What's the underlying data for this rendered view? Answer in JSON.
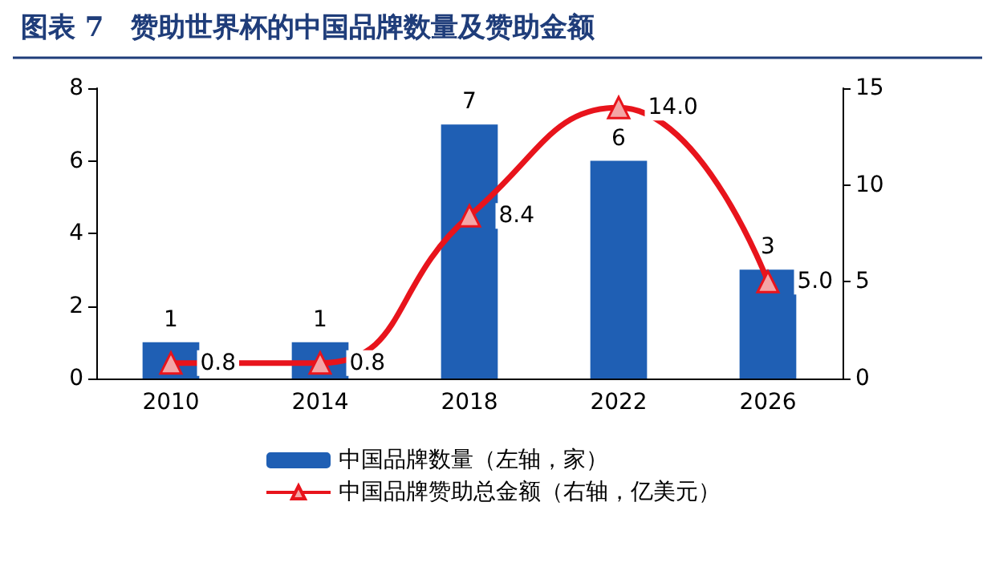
{
  "chart_data": {
    "type": "bar",
    "title": "图表 7　赞助世界杯的中国品牌数量及赞助金额",
    "categories": [
      "2010",
      "2014",
      "2018",
      "2022",
      "2026"
    ],
    "series": [
      {
        "name": "中国品牌数量（左轴，家）",
        "color": "#1f5fb4",
        "values": [
          1,
          1,
          7,
          6,
          3
        ],
        "value_labels": [
          "1",
          "1",
          "7",
          "6",
          "3"
        ]
      },
      {
        "name": "中国品牌赞助总金额（右轴，亿美元）",
        "type": "line",
        "axis": "y2",
        "color": "#e8141c",
        "values": [
          0.8,
          0.8,
          8.4,
          14.0,
          5.0
        ],
        "value_labels": [
          "0.8",
          "0.8",
          "8.4",
          "14.0",
          "5.0"
        ],
        "marker": "triangle"
      }
    ],
    "ylim": [
      0,
      8
    ],
    "yticks": [
      0,
      2,
      4,
      6,
      8
    ],
    "y2lim": [
      0,
      15
    ],
    "y2ticks": [
      0,
      5,
      10,
      15
    ],
    "grid": false,
    "legend": "bottom"
  }
}
